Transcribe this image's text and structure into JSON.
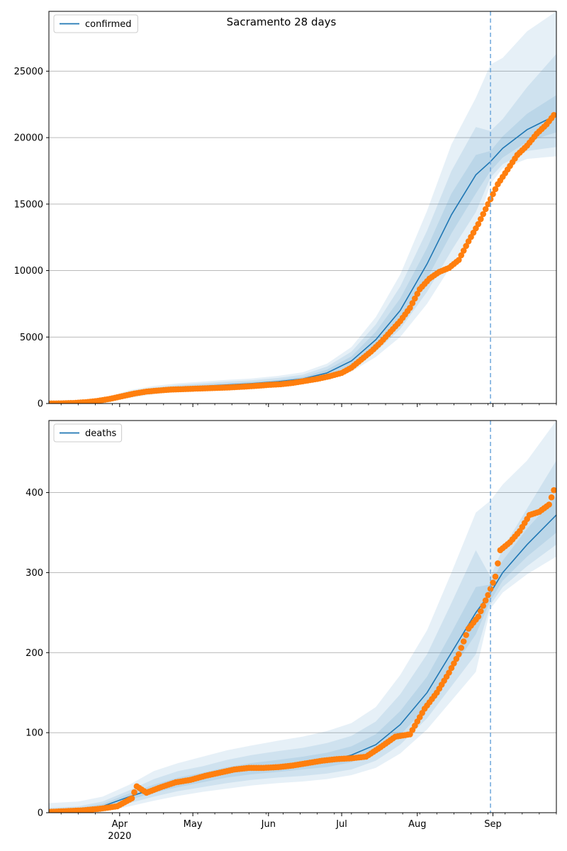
{
  "title": "Sacramento 28 days",
  "colors": {
    "line": "#1f77b4",
    "observed": "#ff7f0e",
    "band": "#1f77b4",
    "grid": "#b0b0b0",
    "forecast_start": "#6fa8dc"
  },
  "chart_data": [
    {
      "type": "line",
      "name": "confirmed-panel",
      "legend": "confirmed",
      "legend_position": "top-left",
      "grid": "horizontal",
      "xlim": [
        "2020-03-03",
        "2020-09-27"
      ],
      "ylim": [
        0,
        29500
      ],
      "yticks": [
        0,
        5000,
        10000,
        15000,
        20000,
        25000
      ],
      "forecast_start": "2020-08-31",
      "model": {
        "x": [
          "2020-03-03",
          "2020-03-15",
          "2020-03-25",
          "2020-04-05",
          "2020-04-15",
          "2020-04-25",
          "2020-05-05",
          "2020-05-15",
          "2020-05-25",
          "2020-06-05",
          "2020-06-15",
          "2020-06-25",
          "2020-07-05",
          "2020-07-15",
          "2020-07-25",
          "2020-08-05",
          "2020-08-15",
          "2020-08-25",
          "2020-08-31",
          "2020-09-05",
          "2020-09-15",
          "2020-09-27"
        ],
        "median": [
          0,
          30,
          200,
          700,
          1000,
          1200,
          1300,
          1400,
          1500,
          1650,
          1850,
          2300,
          3200,
          4800,
          7000,
          10500,
          14200,
          17200,
          18200,
          19200,
          20600,
          21700
        ],
        "band_50": [
          [
            0,
            0
          ],
          [
            20,
            40
          ],
          [
            170,
            240
          ],
          [
            600,
            800
          ],
          [
            900,
            1100
          ],
          [
            1100,
            1300
          ],
          [
            1200,
            1400
          ],
          [
            1300,
            1520
          ],
          [
            1400,
            1620
          ],
          [
            1550,
            1780
          ],
          [
            1720,
            2000
          ],
          [
            2100,
            2550
          ],
          [
            2900,
            3550
          ],
          [
            4300,
            5400
          ],
          [
            6200,
            7900
          ],
          [
            9400,
            11700
          ],
          [
            12800,
            15800
          ],
          [
            15800,
            18700
          ],
          [
            17500,
            19000
          ],
          [
            18500,
            20100
          ],
          [
            19700,
            21800
          ],
          [
            20400,
            23200
          ]
        ],
        "band_80": [
          [
            0,
            0
          ],
          [
            10,
            60
          ],
          [
            130,
            290
          ],
          [
            500,
            900
          ],
          [
            800,
            1200
          ],
          [
            1000,
            1400
          ],
          [
            1100,
            1520
          ],
          [
            1200,
            1650
          ],
          [
            1300,
            1750
          ],
          [
            1450,
            1930
          ],
          [
            1600,
            2170
          ],
          [
            1950,
            2780
          ],
          [
            2650,
            3900
          ],
          [
            3900,
            5950
          ],
          [
            5600,
            8800
          ],
          [
            8400,
            13000
          ],
          [
            11500,
            17500
          ],
          [
            14400,
            20800
          ],
          [
            17000,
            20500
          ],
          [
            18000,
            21400
          ],
          [
            19000,
            23800
          ],
          [
            19300,
            26300
          ]
        ],
        "band_95": [
          [
            0,
            0
          ],
          [
            0,
            80
          ],
          [
            100,
            340
          ],
          [
            420,
            1000
          ],
          [
            700,
            1320
          ],
          [
            900,
            1520
          ],
          [
            1000,
            1650
          ],
          [
            1080,
            1780
          ],
          [
            1180,
            1880
          ],
          [
            1330,
            2080
          ],
          [
            1480,
            2350
          ],
          [
            1800,
            3000
          ],
          [
            2400,
            4250
          ],
          [
            3500,
            6500
          ],
          [
            5000,
            9700
          ],
          [
            7500,
            14500
          ],
          [
            10400,
            19500
          ],
          [
            13200,
            23000
          ],
          [
            16500,
            25500
          ],
          [
            17700,
            26000
          ],
          [
            18400,
            28000
          ],
          [
            18600,
            29500
          ]
        ]
      },
      "observed": {
        "x": [
          "2020-03-03",
          "2020-03-08",
          "2020-03-13",
          "2020-03-18",
          "2020-03-23",
          "2020-03-28",
          "2020-04-02",
          "2020-04-07",
          "2020-04-12",
          "2020-04-17",
          "2020-04-22",
          "2020-04-27",
          "2020-05-02",
          "2020-05-07",
          "2020-05-12",
          "2020-05-17",
          "2020-05-22",
          "2020-05-27",
          "2020-06-01",
          "2020-06-06",
          "2020-06-11",
          "2020-06-16",
          "2020-06-21",
          "2020-06-26",
          "2020-07-01",
          "2020-07-05",
          "2020-07-09",
          "2020-07-13",
          "2020-07-17",
          "2020-07-21",
          "2020-07-25",
          "2020-07-29",
          "2020-08-02",
          "2020-08-06",
          "2020-08-10",
          "2020-08-14",
          "2020-08-18",
          "2020-08-22",
          "2020-08-26",
          "2020-08-30",
          "2020-09-03",
          "2020-09-07",
          "2020-09-11",
          "2020-09-15",
          "2020-09-19",
          "2020-09-23",
          "2020-09-26"
        ],
        "y": [
          0,
          10,
          40,
          100,
          200,
          350,
          550,
          750,
          900,
          980,
          1050,
          1080,
          1120,
          1150,
          1180,
          1220,
          1270,
          1330,
          1400,
          1450,
          1550,
          1700,
          1850,
          2050,
          2300,
          2700,
          3300,
          3900,
          4600,
          5400,
          6200,
          7200,
          8600,
          9400,
          9900,
          10200,
          10800,
          12200,
          13500,
          15000,
          16500,
          17600,
          18700,
          19400,
          20300,
          21000,
          21700
        ]
      }
    },
    {
      "type": "line",
      "name": "deaths-panel",
      "legend": "deaths",
      "legend_position": "top-left",
      "grid": "horizontal",
      "xlim": [
        "2020-03-03",
        "2020-09-27"
      ],
      "ylim": [
        0,
        490
      ],
      "yticks": [
        0,
        100,
        200,
        300,
        400
      ],
      "xticks": [
        {
          "date": "2020-04-01",
          "label": "Apr",
          "sublabel": "2020"
        },
        {
          "date": "2020-05-01",
          "label": "May"
        },
        {
          "date": "2020-06-01",
          "label": "Jun"
        },
        {
          "date": "2020-07-01",
          "label": "Jul"
        },
        {
          "date": "2020-08-01",
          "label": "Aug"
        },
        {
          "date": "2020-09-01",
          "label": "Sep"
        }
      ],
      "forecast_start": "2020-08-31",
      "model": {
        "x": [
          "2020-03-03",
          "2020-03-15",
          "2020-03-25",
          "2020-04-05",
          "2020-04-15",
          "2020-04-25",
          "2020-05-05",
          "2020-05-15",
          "2020-05-25",
          "2020-06-05",
          "2020-06-15",
          "2020-06-25",
          "2020-07-05",
          "2020-07-15",
          "2020-07-25",
          "2020-08-05",
          "2020-08-15",
          "2020-08-25",
          "2020-08-31",
          "2020-09-05",
          "2020-09-15",
          "2020-09-27"
        ],
        "median": [
          2,
          4,
          8,
          20,
          30,
          38,
          44,
          50,
          55,
          58,
          61,
          65,
          72,
          85,
          110,
          150,
          200,
          250,
          275,
          300,
          335,
          372
        ],
        "band_50": [
          [
            0,
            4
          ],
          [
            2,
            6
          ],
          [
            5,
            11
          ],
          [
            16,
            24
          ],
          [
            25,
            35
          ],
          [
            32,
            44
          ],
          [
            38,
            50
          ],
          [
            44,
            57
          ],
          [
            48,
            62
          ],
          [
            51,
            66
          ],
          [
            54,
            70
          ],
          [
            57,
            75
          ],
          [
            63,
            83
          ],
          [
            75,
            98
          ],
          [
            97,
            127
          ],
          [
            133,
            170
          ],
          [
            178,
            225
          ],
          [
            223,
            282
          ],
          [
            265,
            285
          ],
          [
            290,
            315
          ],
          [
            320,
            355
          ],
          [
            350,
            395
          ]
        ],
        "band_80": [
          [
            0,
            6
          ],
          [
            1,
            8
          ],
          [
            3,
            14
          ],
          [
            12,
            28
          ],
          [
            20,
            42
          ],
          [
            27,
            52
          ],
          [
            32,
            58
          ],
          [
            37,
            66
          ],
          [
            41,
            72
          ],
          [
            44,
            77
          ],
          [
            46,
            81
          ],
          [
            49,
            87
          ],
          [
            54,
            96
          ],
          [
            65,
            114
          ],
          [
            85,
            148
          ],
          [
            118,
            198
          ],
          [
            158,
            262
          ],
          [
            198,
            328
          ],
          [
            260,
            295
          ],
          [
            282,
            330
          ],
          [
            308,
            380
          ],
          [
            335,
            440
          ]
        ],
        "band_95": [
          [
            0,
            12
          ],
          [
            0,
            14
          ],
          [
            1,
            20
          ],
          [
            8,
            35
          ],
          [
            15,
            52
          ],
          [
            21,
            62
          ],
          [
            26,
            70
          ],
          [
            30,
            78
          ],
          [
            34,
            84
          ],
          [
            37,
            90
          ],
          [
            39,
            95
          ],
          [
            42,
            102
          ],
          [
            47,
            112
          ],
          [
            56,
            132
          ],
          [
            74,
            172
          ],
          [
            104,
            228
          ],
          [
            140,
            300
          ],
          [
            176,
            375
          ],
          [
            255,
            390
          ],
          [
            275,
            410
          ],
          [
            298,
            440
          ],
          [
            320,
            490
          ]
        ]
      },
      "observed": {
        "x": [
          "2020-03-03",
          "2020-03-10",
          "2020-03-17",
          "2020-03-24",
          "2020-03-31",
          "2020-04-06",
          "2020-04-08",
          "2020-04-12",
          "2020-04-18",
          "2020-04-24",
          "2020-04-30",
          "2020-05-06",
          "2020-05-12",
          "2020-05-18",
          "2020-05-24",
          "2020-05-30",
          "2020-06-05",
          "2020-06-11",
          "2020-06-17",
          "2020-06-23",
          "2020-06-29",
          "2020-07-05",
          "2020-07-11",
          "2020-07-17",
          "2020-07-23",
          "2020-07-29",
          "2020-08-04",
          "2020-08-09",
          "2020-08-14",
          "2020-08-18",
          "2020-08-22",
          "2020-08-26",
          "2020-08-30",
          "2020-09-02",
          "2020-09-04",
          "2020-09-08",
          "2020-09-12",
          "2020-09-16",
          "2020-09-20",
          "2020-09-24",
          "2020-09-26"
        ],
        "y": [
          1,
          2,
          3,
          5,
          8,
          18,
          33,
          25,
          32,
          38,
          41,
          46,
          50,
          54,
          56,
          56,
          57,
          59,
          62,
          65,
          67,
          68,
          70,
          82,
          95,
          98,
          130,
          150,
          175,
          198,
          230,
          245,
          272,
          295,
          328,
          338,
          352,
          372,
          376,
          385,
          403
        ]
      }
    }
  ]
}
